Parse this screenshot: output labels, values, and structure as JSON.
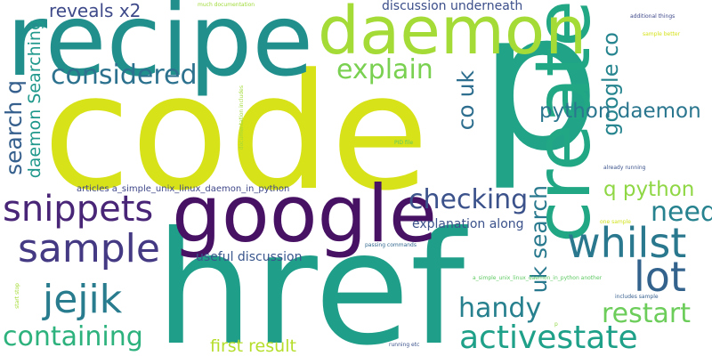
{
  "words": [
    {
      "text": "code",
      "color": "#d8e219",
      "orientation": "horizontal"
    },
    {
      "text": "p",
      "color": "#20a386",
      "orientation": "horizontal"
    },
    {
      "text": "href",
      "color": "#1f9e89",
      "orientation": "horizontal"
    },
    {
      "text": "recipe",
      "color": "#21908d",
      "orientation": "horizontal"
    },
    {
      "text": "create",
      "color": "#22a785",
      "orientation": "vertical"
    },
    {
      "text": "google",
      "color": "#471164",
      "orientation": "horizontal"
    },
    {
      "text": "daemon",
      "color": "#a5db36",
      "orientation": "horizontal"
    },
    {
      "text": "whilst",
      "color": "#2a788e",
      "orientation": "horizontal"
    },
    {
      "text": "activestate",
      "color": "#1fa088",
      "orientation": "horizontal"
    },
    {
      "text": "snippets",
      "color": "#482576",
      "orientation": "horizontal"
    },
    {
      "text": "lot",
      "color": "#33638d",
      "orientation": "horizontal"
    },
    {
      "text": "sample",
      "color": "#443983",
      "orientation": "horizontal"
    },
    {
      "text": "jejik",
      "color": "#287c8e",
      "orientation": "horizontal"
    },
    {
      "text": "containing",
      "color": "#2db27d",
      "orientation": "horizontal"
    },
    {
      "text": "considered",
      "color": "#2c728e",
      "orientation": "horizontal"
    },
    {
      "text": "explain",
      "color": "#7ad151",
      "orientation": "horizontal"
    },
    {
      "text": "checking",
      "color": "#3b528b",
      "orientation": "horizontal"
    },
    {
      "text": "restart",
      "color": "#6ccd5a",
      "orientation": "horizontal"
    },
    {
      "text": "handy",
      "color": "#27808e",
      "orientation": "horizontal"
    },
    {
      "text": "need",
      "color": "#26828e",
      "orientation": "horizontal"
    },
    {
      "text": "search q",
      "color": "#355f8d",
      "orientation": "vertical"
    },
    {
      "text": "google co",
      "color": "#25848e",
      "orientation": "vertical"
    },
    {
      "text": "co uk",
      "color": "#2e6e8e",
      "orientation": "vertical"
    },
    {
      "text": "uk search",
      "color": "#29798e",
      "orientation": "vertical"
    },
    {
      "text": "daemon Searching",
      "color": "#1f988b",
      "orientation": "vertical"
    },
    {
      "text": "python daemon",
      "color": "#2a768e",
      "orientation": "horizontal"
    },
    {
      "text": "q python",
      "color": "#8fd744",
      "orientation": "horizontal"
    },
    {
      "text": "reveals x2",
      "color": "#3e4a89",
      "orientation": "horizontal"
    },
    {
      "text": "first result",
      "color": "#b5de2b",
      "orientation": "horizontal"
    },
    {
      "text": "discussion underneath",
      "color": "#3c4f8a",
      "orientation": "horizontal"
    },
    {
      "text": "useful discussion",
      "color": "#39568c",
      "orientation": "horizontal"
    },
    {
      "text": "explanation along",
      "color": "#3b528b",
      "orientation": "horizontal"
    },
    {
      "text": "articles a_simple_unix_linux_daemon_in_python",
      "color": "#3f4788",
      "orientation": "horizontal"
    },
    {
      "text": "much documentation",
      "color": "#a0da39",
      "orientation": "horizontal"
    },
    {
      "text": "additional things",
      "color": "#3e4989",
      "orientation": "horizontal"
    },
    {
      "text": "sample better",
      "color": "#d5e21a",
      "orientation": "horizontal"
    },
    {
      "text": "documentation includes",
      "color": "#a2da37",
      "orientation": "vertical"
    },
    {
      "text": "PID file",
      "color": "#5ec962",
      "orientation": "horizontal"
    },
    {
      "text": "already running",
      "color": "#3b528b",
      "orientation": "horizontal"
    },
    {
      "text": "one sample",
      "color": "#d2e21b",
      "orientation": "horizontal"
    },
    {
      "text": "passing commands",
      "color": "#31678e",
      "orientation": "horizontal"
    },
    {
      "text": "a_simple_unix_linux_daemon_in_python another",
      "color": "#5ec962",
      "orientation": "horizontal"
    },
    {
      "text": "includes sample",
      "color": "#355e8d",
      "orientation": "horizontal"
    },
    {
      "text": "start stop",
      "color": "#a5db36",
      "orientation": "vertical"
    },
    {
      "text": "running etc",
      "color": "#3b528b",
      "orientation": "horizontal"
    },
    {
      "text": "p",
      "color": "#8fd744",
      "orientation": "horizontal"
    }
  ]
}
